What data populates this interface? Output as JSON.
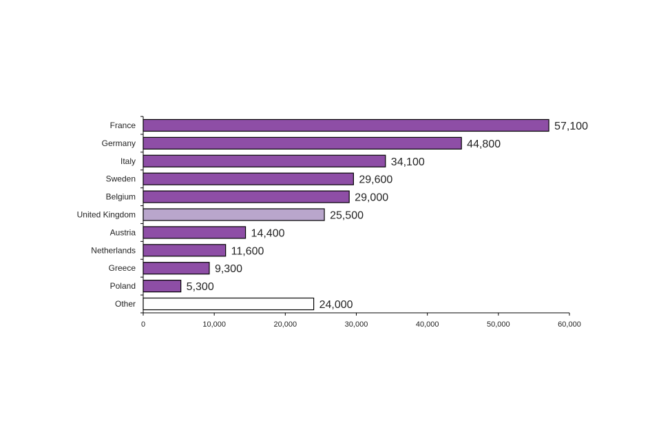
{
  "chart_data": {
    "type": "bar",
    "orientation": "horizontal",
    "categories": [
      "France",
      "Germany",
      "Italy",
      "Sweden",
      "Belgium",
      "United Kingdom",
      "Austria",
      "Netherlands",
      "Greece",
      "Poland",
      "Other"
    ],
    "values": [
      57100,
      44800,
      34100,
      29600,
      29000,
      25500,
      14400,
      11600,
      9300,
      5300,
      24000
    ],
    "value_labels": [
      "57,100",
      "44,800",
      "34,100",
      "29,600",
      "29,000",
      "25,500",
      "14,400",
      "11,600",
      "9,300",
      "5,300",
      "24,000"
    ],
    "xlim": [
      0,
      60000
    ],
    "x_ticks": [
      0,
      10000,
      20000,
      30000,
      40000,
      50000,
      60000
    ],
    "x_tick_labels": [
      "0",
      "10,000",
      "20,000",
      "30,000",
      "40,000",
      "50,000",
      "60,000"
    ],
    "title": "",
    "xlabel": "",
    "ylabel": "",
    "grid": false,
    "legend": "none",
    "colors": {
      "default": "#8e4ea6",
      "highlight": "#b9a6cc",
      "other": "#ffffff",
      "stroke": "#000000"
    },
    "bar_color_roles": [
      "default",
      "default",
      "default",
      "default",
      "default",
      "highlight",
      "default",
      "default",
      "default",
      "default",
      "other"
    ]
  }
}
